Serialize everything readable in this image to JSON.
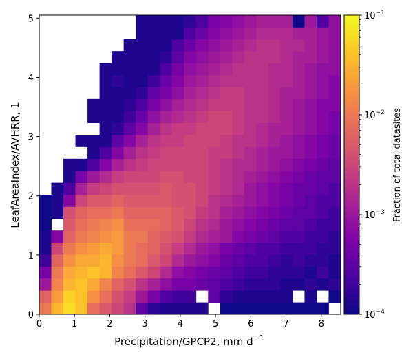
{
  "chart_data": {
    "type": "heatmap",
    "xlabel": "Precipitation/GPCP2,  mm d",
    "xlabel_sup": "−1",
    "ylabel": "LeafAreaIndex/AVHRR,  1",
    "xlim": [
      0,
      8.55
    ],
    "ylim": [
      0,
      5.05
    ],
    "x_ticks": [
      0,
      1,
      2,
      3,
      4,
      5,
      6,
      7,
      8
    ],
    "y_ticks": [
      0,
      1,
      2,
      3,
      4,
      5
    ],
    "grid": false,
    "colorbar": {
      "label": "Fraction of total datasites",
      "scale": "log",
      "range": [
        0.0001,
        0.1
      ],
      "colormap": "plasma",
      "tick_labels": [
        {
          "value": 0.1,
          "mantissa": "10",
          "exp": "−1"
        },
        {
          "value": 0.01,
          "mantissa": "10",
          "exp": "−2"
        },
        {
          "value": 0.001,
          "mantissa": "10",
          "exp": "−3"
        },
        {
          "value": 0.0001,
          "mantissa": "10",
          "exp": "−4"
        }
      ]
    },
    "bins": {
      "nx": 25,
      "ny": 25,
      "x_min": 0,
      "x_max": 8.55,
      "y_min": 0,
      "y_max": 5.05,
      "description": "rows listed from bottom (y bin 0) to top; values are log10(fraction), null = empty bin",
      "log10_values": [
        [
          -2.0,
          -1.5,
          -1.2,
          -1.4,
          -2.1,
          -2.3,
          -2.5,
          -2.7,
          -3.5,
          -3.8,
          -3.9,
          -3.9,
          -3.9,
          -3.9,
          null,
          -4.0,
          -4.0,
          -4.0,
          -4.0,
          -4.0,
          -4.0,
          -4.0,
          -4.0,
          -4.0,
          null
        ],
        [
          -2.2,
          -1.7,
          -1.3,
          -1.4,
          -1.8,
          -2.1,
          -2.4,
          -2.6,
          -3.0,
          -3.3,
          -3.6,
          -3.7,
          -3.7,
          null,
          -3.5,
          -3.8,
          -3.9,
          -3.9,
          -3.9,
          -3.9,
          -3.9,
          null,
          -3.9,
          null,
          -4.0
        ],
        [
          -3.0,
          -1.9,
          -1.5,
          -1.4,
          -1.6,
          -1.9,
          -2.2,
          -2.4,
          -2.7,
          -2.9,
          -3.1,
          -3.3,
          -3.3,
          -3.4,
          -3.5,
          -3.6,
          -3.7,
          -3.8,
          -3.8,
          -3.8,
          -3.9,
          -3.9,
          -3.8,
          -3.9,
          -3.8
        ],
        [
          -3.3,
          -2.0,
          -1.6,
          -1.5,
          -1.4,
          -1.5,
          -1.9,
          -2.1,
          -2.3,
          -2.5,
          -2.8,
          -3.1,
          -3.2,
          -3.3,
          -3.4,
          -3.5,
          -3.6,
          -3.7,
          -3.7,
          -3.8,
          -3.8,
          -3.8,
          -3.9,
          -3.7,
          -3.9
        ],
        [
          -3.7,
          -2.2,
          -1.8,
          -1.6,
          -1.6,
          -1.5,
          -1.8,
          -2.0,
          -2.1,
          -2.3,
          -2.5,
          -2.8,
          -3.0,
          -3.1,
          -3.2,
          -3.4,
          -3.5,
          -3.6,
          -3.6,
          -3.7,
          -3.8,
          -3.7,
          -3.8,
          -3.8,
          -3.9
        ],
        [
          -3.9,
          -2.5,
          -2.0,
          -1.8,
          -1.7,
          -1.6,
          -1.7,
          -2.0,
          -2.1,
          -2.2,
          -2.4,
          -2.6,
          -2.8,
          -3.0,
          -3.1,
          -3.3,
          -3.4,
          -3.5,
          -3.6,
          -3.6,
          -3.7,
          -3.7,
          -3.7,
          -3.8,
          -3.8
        ],
        [
          -3.9,
          -3.2,
          -2.2,
          -2.0,
          -1.9,
          -1.8,
          -1.7,
          -2.0,
          -2.0,
          -2.2,
          -2.3,
          -2.4,
          -2.6,
          -2.8,
          -2.9,
          -3.0,
          -3.2,
          -3.3,
          -3.4,
          -3.5,
          -3.6,
          -3.6,
          -3.7,
          -3.7,
          -3.8
        ],
        [
          -4.0,
          null,
          -2.3,
          -2.1,
          -2.0,
          -1.9,
          -1.8,
          -2.1,
          -2.1,
          -2.1,
          -2.2,
          -2.3,
          -2.5,
          -2.7,
          -2.8,
          -3.0,
          -3.1,
          -3.2,
          -3.3,
          -3.4,
          -3.5,
          -3.5,
          -3.6,
          -3.7,
          -3.7
        ],
        [
          -4.0,
          -3.9,
          -2.4,
          -2.2,
          -2.1,
          -2.1,
          -2.0,
          -2.2,
          -2.2,
          -2.2,
          -2.2,
          -2.3,
          -2.4,
          -2.6,
          -2.7,
          -2.9,
          -3.0,
          -3.1,
          -3.2,
          -3.3,
          -3.4,
          -3.5,
          -3.5,
          -3.6,
          -3.7
        ],
        [
          -4.0,
          -3.9,
          -3.2,
          -2.5,
          -2.3,
          -2.3,
          -2.2,
          -2.3,
          -2.3,
          -2.3,
          -2.3,
          -2.4,
          -2.4,
          -2.5,
          -2.7,
          -2.8,
          -2.9,
          -3.0,
          -3.1,
          -3.2,
          -3.3,
          -3.4,
          -3.5,
          -3.6,
          -3.6
        ],
        [
          null,
          -3.9,
          -3.6,
          -2.9,
          -2.6,
          -2.5,
          -2.4,
          -2.4,
          -2.4,
          -2.4,
          -2.3,
          -2.4,
          -2.4,
          -2.5,
          -2.6,
          -2.7,
          -2.8,
          -3.0,
          -3.1,
          -3.2,
          -3.3,
          -3.4,
          -3.4,
          -3.5,
          -3.6
        ],
        [
          null,
          null,
          -3.9,
          -3.3,
          -3.0,
          -2.8,
          -2.6,
          -2.5,
          -2.5,
          -2.5,
          -2.4,
          -2.4,
          -2.5,
          -2.5,
          -2.6,
          -2.7,
          -2.8,
          -2.9,
          -3.0,
          -3.1,
          -3.2,
          -3.3,
          -3.4,
          -3.5,
          -3.5
        ],
        [
          null,
          null,
          -3.9,
          -3.9,
          -3.6,
          -3.2,
          -2.9,
          -2.7,
          -2.6,
          -2.5,
          -2.5,
          -2.5,
          -2.5,
          -2.5,
          -2.6,
          -2.7,
          -2.8,
          -2.8,
          -2.9,
          -3.0,
          -3.1,
          -3.2,
          -3.3,
          -3.4,
          -3.5
        ],
        [
          null,
          null,
          null,
          null,
          -3.9,
          -3.6,
          -3.2,
          -2.9,
          -2.7,
          -2.6,
          -2.5,
          -2.5,
          -2.5,
          -2.5,
          -2.6,
          -2.6,
          -2.7,
          -2.8,
          -2.9,
          -3.0,
          -3.0,
          -3.1,
          -3.2,
          -3.3,
          -3.4
        ],
        [
          null,
          null,
          null,
          -3.9,
          -3.9,
          -3.9,
          -3.5,
          -3.2,
          -2.9,
          -2.7,
          -2.6,
          -2.6,
          -2.5,
          -2.5,
          -2.5,
          -2.6,
          -2.7,
          -2.7,
          -2.8,
          -2.9,
          -3.0,
          -3.1,
          -3.2,
          -3.3,
          -3.4
        ],
        [
          null,
          null,
          null,
          null,
          null,
          -3.9,
          -3.8,
          -3.5,
          -3.2,
          -2.9,
          -2.7,
          -2.6,
          -2.6,
          -2.5,
          -2.5,
          -2.5,
          -2.6,
          -2.7,
          -2.8,
          -2.9,
          -2.9,
          -3.0,
          -3.1,
          -3.2,
          -3.3
        ],
        [
          null,
          null,
          null,
          null,
          -3.9,
          -3.9,
          -3.9,
          -3.7,
          -3.4,
          -3.1,
          -2.9,
          -2.8,
          -2.7,
          -2.6,
          -2.5,
          -2.5,
          -2.6,
          -2.7,
          -2.7,
          -2.8,
          -2.9,
          -3.0,
          -3.1,
          -3.2,
          -3.3
        ],
        [
          null,
          null,
          null,
          null,
          -3.9,
          -3.9,
          -3.9,
          -3.8,
          -3.6,
          -3.3,
          -3.1,
          -2.9,
          -2.8,
          -2.7,
          -2.6,
          -2.6,
          -2.6,
          -2.7,
          -2.7,
          -2.8,
          -2.9,
          -3.0,
          -3.1,
          -3.2,
          -3.2
        ],
        [
          null,
          null,
          null,
          null,
          null,
          -3.9,
          -3.9,
          -3.9,
          -3.8,
          -3.5,
          -3.3,
          -3.1,
          -2.9,
          -2.8,
          -2.7,
          -2.6,
          -2.6,
          -2.7,
          -2.7,
          -2.8,
          -2.9,
          -2.9,
          -3.0,
          -3.1,
          -3.2
        ],
        [
          null,
          null,
          null,
          null,
          null,
          -3.9,
          -3.8,
          -3.9,
          -3.9,
          -3.7,
          -3.4,
          -3.2,
          -3.0,
          -2.9,
          -2.8,
          -2.7,
          -2.7,
          -2.7,
          -2.7,
          -2.8,
          -2.8,
          -2.9,
          -3.0,
          -3.1,
          -3.2
        ],
        [
          null,
          null,
          null,
          null,
          null,
          -3.9,
          -3.9,
          -3.9,
          -3.9,
          -3.9,
          -3.6,
          -3.3,
          -3.1,
          -3.0,
          -2.9,
          -2.8,
          -2.7,
          -2.7,
          -2.7,
          -2.8,
          -2.8,
          -2.9,
          -3.0,
          -3.1,
          -3.1
        ],
        [
          null,
          null,
          null,
          null,
          null,
          null,
          -3.9,
          -3.9,
          -3.9,
          -3.9,
          -3.8,
          -3.5,
          -3.2,
          -3.1,
          -3.0,
          -2.9,
          -2.8,
          -2.7,
          -2.7,
          -2.7,
          -2.8,
          -2.9,
          -2.9,
          -3.0,
          -3.1
        ],
        [
          null,
          null,
          null,
          null,
          null,
          null,
          null,
          -3.9,
          -3.9,
          -3.9,
          -3.9,
          -3.6,
          -3.4,
          -3.2,
          -3.1,
          -3.0,
          -2.9,
          -2.8,
          -2.7,
          -2.7,
          -2.8,
          -2.8,
          -2.9,
          -3.0,
          -3.1
        ],
        [
          null,
          null,
          null,
          null,
          null,
          null,
          null,
          null,
          -3.9,
          -3.9,
          -3.9,
          -3.9,
          -3.6,
          -3.4,
          -3.2,
          -3.1,
          -3.0,
          -2.9,
          -2.8,
          -2.8,
          -2.8,
          -2.9,
          -2.9,
          -3.0,
          -3.1
        ],
        [
          null,
          null,
          null,
          null,
          null,
          null,
          null,
          null,
          -3.9,
          -3.9,
          -3.9,
          -3.9,
          -3.8,
          -3.6,
          -3.3,
          -3.2,
          -3.1,
          -3.0,
          -2.9,
          -2.9,
          -2.9,
          -4.0,
          -3.0,
          -3.6,
          -3.1
        ]
      ]
    }
  }
}
